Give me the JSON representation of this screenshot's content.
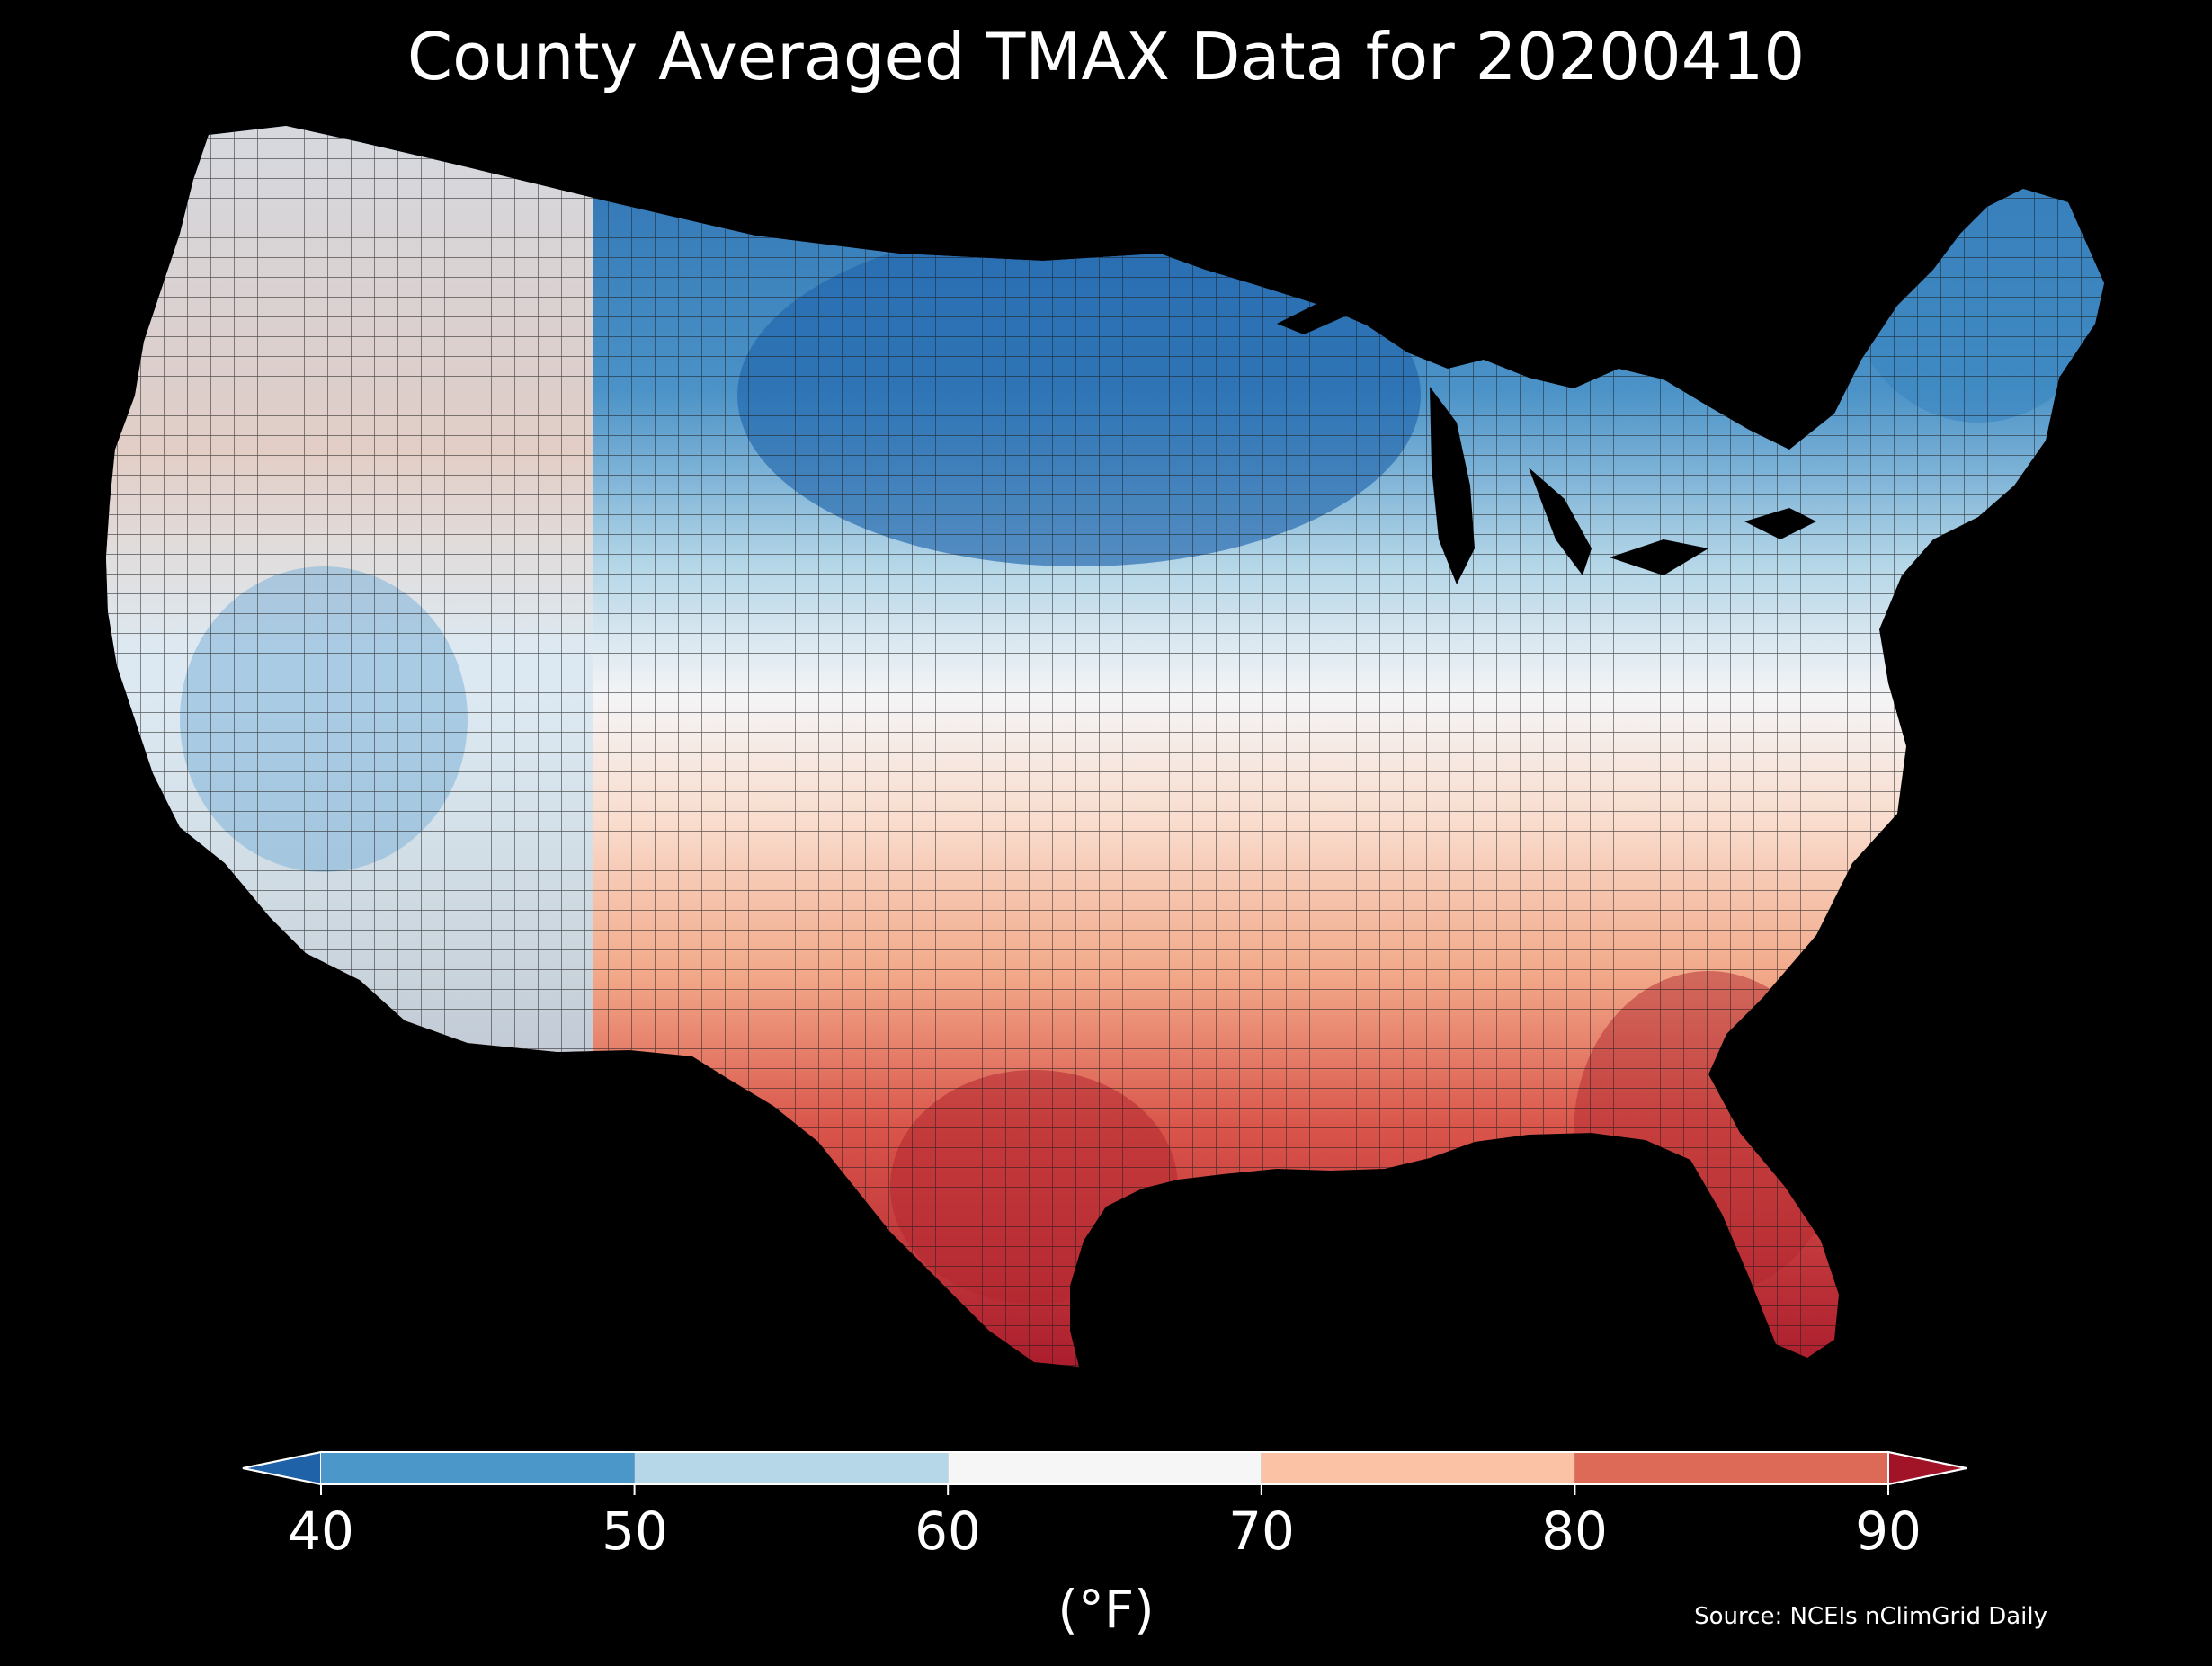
{
  "title": "County Averaged TMAX Data for 20200410",
  "colorbar": {
    "unit": "(°F)",
    "ticks": [
      "40",
      "50",
      "60",
      "70",
      "80",
      "90"
    ],
    "bins": [
      {
        "from": 40,
        "to": 50,
        "color": "#4b97c9"
      },
      {
        "from": 50,
        "to": 60,
        "color": "#b6d7e8"
      },
      {
        "from": 60,
        "to": 70,
        "color": "#f6f6f6"
      },
      {
        "from": 70,
        "to": 80,
        "color": "#fbc2a6"
      },
      {
        "from": 80,
        "to": 90,
        "color": "#dd6a57"
      }
    ],
    "under_color": "#1f62a8",
    "over_color": "#a11428",
    "extend": "both"
  },
  "source": "Source: NCEIs nClimGrid Daily",
  "map": {
    "region": "contiguous-united-states",
    "units": "county",
    "variable": "TMAX",
    "regions_palette": {
      "great-plains-north-midwest": "#3a80bd",
      "minnesota-core": "#2166ac",
      "northeast-maine": "#3a86c0",
      "pacific-northwest": "#f7d2c2",
      "southeast-gulf": "#d0504a",
      "south-texas-florida": "#b2272f"
    },
    "background": "#000000",
    "county_border_color": "#222222"
  }
}
